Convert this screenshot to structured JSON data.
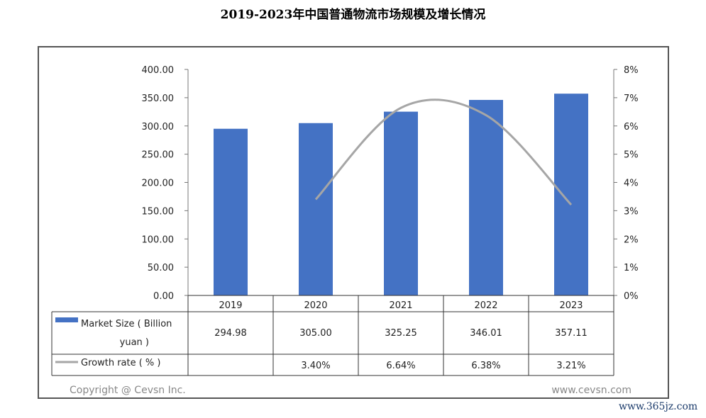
{
  "chart_data": {
    "type": "bar",
    "title": "2019-2023年中国普通物流市场规模及增长情况",
    "categories": [
      "2019",
      "2020",
      "2021",
      "2022",
      "2023"
    ],
    "series": [
      {
        "name": "Market Size ( Billion yuan )",
        "type": "bar",
        "axis": "left",
        "color": "#4472C4",
        "values": [
          294.98,
          305.0,
          325.25,
          346.01,
          357.11
        ],
        "labels": [
          "294.98",
          "305.00",
          "325.25",
          "346.01",
          "357.11"
        ]
      },
      {
        "name": "Growth rate ( % )",
        "type": "line",
        "axis": "right",
        "color": "#A6A6A6",
        "values": [
          null,
          3.4,
          6.64,
          6.38,
          3.21
        ],
        "labels": [
          "",
          "3.40%",
          "6.64%",
          "6.38%",
          "3.21%"
        ]
      }
    ],
    "left_axis": {
      "ylim": [
        0,
        400
      ],
      "ticks": [
        "0.00",
        "50.00",
        "100.00",
        "150.00",
        "200.00",
        "250.00",
        "300.00",
        "350.00",
        "400.00"
      ]
    },
    "right_axis": {
      "ylim": [
        0,
        8
      ],
      "ticks": [
        "0%",
        "1%",
        "2%",
        "3%",
        "4%",
        "5%",
        "6%",
        "7%",
        "8%"
      ]
    },
    "legend": "data-table",
    "grid": false
  },
  "footer": {
    "copyright": "Copyright @ Cevsn Inc.",
    "site": "www.cevsn.com"
  },
  "watermark": "www.365jz.com"
}
